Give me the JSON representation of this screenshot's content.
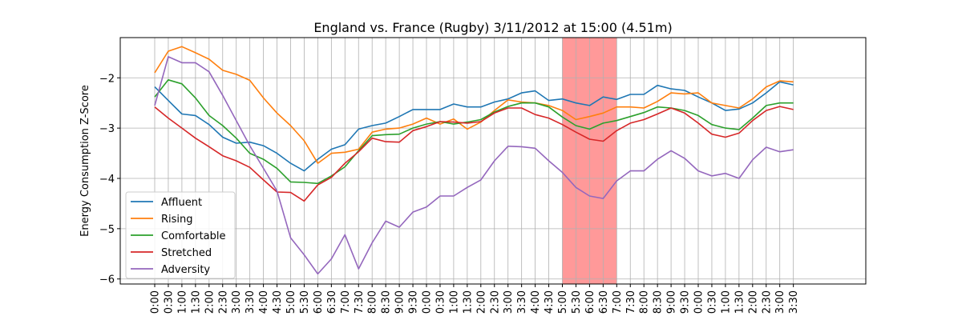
{
  "chart_data": {
    "type": "line",
    "title": "England vs. France (Rugby) 3/11/2012 at 15:00 (4.51m)",
    "ylabel": "Energy Consumption Z-Score",
    "xlabel": "",
    "ylim": [
      -6.1,
      -1.2
    ],
    "yticks": [
      -6,
      -5,
      -4,
      -3,
      -2
    ],
    "grid": true,
    "legend_position": "lower-left",
    "x": [
      "0:00",
      "0:30",
      "1:00",
      "1:30",
      "2:00",
      "2:30",
      "3:00",
      "3:30",
      "4:00",
      "4:30",
      "5:00",
      "5:30",
      "6:00",
      "6:30",
      "7:00",
      "7:30",
      "8:00",
      "8:30",
      "9:00",
      "9:30",
      "0:00",
      "0:30",
      "1:00",
      "1:30",
      "2:00",
      "2:30",
      "3:00",
      "3:30",
      "4:00",
      "4:30",
      "5:00",
      "5:30",
      "6:00",
      "6:30",
      "7:00",
      "7:30",
      "8:00",
      "8:30",
      "9:00",
      "9:30",
      "0:00",
      "0:30",
      "1:00",
      "1:30",
      "2:00",
      "2:30",
      "3:00",
      "3:30"
    ],
    "highlight": {
      "from_index": 30,
      "to_index": 34,
      "color": "#ff9999"
    },
    "series": [
      {
        "name": "Affluent",
        "color": "#1f77b4",
        "values": [
          -2.18,
          -2.45,
          -2.72,
          -2.75,
          -2.93,
          -3.18,
          -3.3,
          -3.28,
          -3.35,
          -3.5,
          -3.7,
          -3.85,
          -3.62,
          -3.42,
          -3.33,
          -3.02,
          -2.95,
          -2.9,
          -2.77,
          -2.63,
          -2.63,
          -2.63,
          -2.52,
          -2.58,
          -2.58,
          -2.48,
          -2.42,
          -2.3,
          -2.26,
          -2.45,
          -2.42,
          -2.5,
          -2.55,
          -2.38,
          -2.43,
          -2.33,
          -2.33,
          -2.15,
          -2.22,
          -2.25,
          -2.38,
          -2.5,
          -2.65,
          -2.62,
          -2.5,
          -2.3,
          -2.08,
          -2.14
        ]
      },
      {
        "name": "Rising",
        "color": "#ff7f0e",
        "values": [
          -1.9,
          -1.47,
          -1.38,
          -1.5,
          -1.63,
          -1.85,
          -1.93,
          -2.05,
          -2.4,
          -2.7,
          -2.95,
          -3.25,
          -3.7,
          -3.5,
          -3.48,
          -3.42,
          -3.08,
          -3.02,
          -3.0,
          -2.92,
          -2.8,
          -2.92,
          -2.82,
          -3.02,
          -2.88,
          -2.65,
          -2.44,
          -2.48,
          -2.5,
          -2.55,
          -2.65,
          -2.83,
          -2.77,
          -2.7,
          -2.58,
          -2.58,
          -2.6,
          -2.47,
          -2.3,
          -2.32,
          -2.3,
          -2.5,
          -2.55,
          -2.6,
          -2.42,
          -2.18,
          -2.06,
          -2.08
        ]
      },
      {
        "name": "Comfortable",
        "color": "#2ca02c",
        "values": [
          -2.38,
          -2.04,
          -2.12,
          -2.4,
          -2.75,
          -2.95,
          -3.2,
          -3.5,
          -3.62,
          -3.8,
          -4.07,
          -4.08,
          -4.1,
          -3.95,
          -3.77,
          -3.45,
          -3.15,
          -3.13,
          -3.12,
          -3.0,
          -2.92,
          -2.87,
          -2.92,
          -2.88,
          -2.83,
          -2.68,
          -2.57,
          -2.5,
          -2.5,
          -2.58,
          -2.78,
          -2.95,
          -3.02,
          -2.9,
          -2.85,
          -2.77,
          -2.69,
          -2.58,
          -2.6,
          -2.65,
          -2.75,
          -2.93,
          -3.0,
          -3.03,
          -2.8,
          -2.55,
          -2.5,
          -2.5
        ]
      },
      {
        "name": "Stretched",
        "color": "#d62728",
        "values": [
          -2.58,
          -2.8,
          -3.0,
          -3.2,
          -3.37,
          -3.55,
          -3.65,
          -3.78,
          -4.03,
          -4.27,
          -4.28,
          -4.45,
          -4.13,
          -3.98,
          -3.7,
          -3.47,
          -3.2,
          -3.27,
          -3.28,
          -3.05,
          -2.97,
          -2.87,
          -2.88,
          -2.9,
          -2.87,
          -2.7,
          -2.6,
          -2.6,
          -2.73,
          -2.8,
          -2.93,
          -3.08,
          -3.22,
          -3.26,
          -3.05,
          -2.9,
          -2.83,
          -2.72,
          -2.6,
          -2.7,
          -2.9,
          -3.12,
          -3.18,
          -3.1,
          -2.85,
          -2.65,
          -2.57,
          -2.63
        ]
      },
      {
        "name": "Adversity",
        "color": "#9467bd",
        "values": [
          -2.55,
          -1.58,
          -1.7,
          -1.7,
          -1.88,
          -2.35,
          -2.85,
          -3.35,
          -3.8,
          -4.25,
          -5.18,
          -5.52,
          -5.9,
          -5.6,
          -5.12,
          -5.8,
          -5.28,
          -4.85,
          -4.97,
          -4.67,
          -4.57,
          -4.35,
          -4.35,
          -4.18,
          -4.03,
          -3.65,
          -3.36,
          -3.37,
          -3.4,
          -3.65,
          -3.88,
          -4.18,
          -4.35,
          -4.4,
          -4.05,
          -3.85,
          -3.85,
          -3.62,
          -3.45,
          -3.6,
          -3.85,
          -3.95,
          -3.9,
          -4.0,
          -3.63,
          -3.38,
          -3.47,
          -3.43
        ]
      }
    ]
  }
}
